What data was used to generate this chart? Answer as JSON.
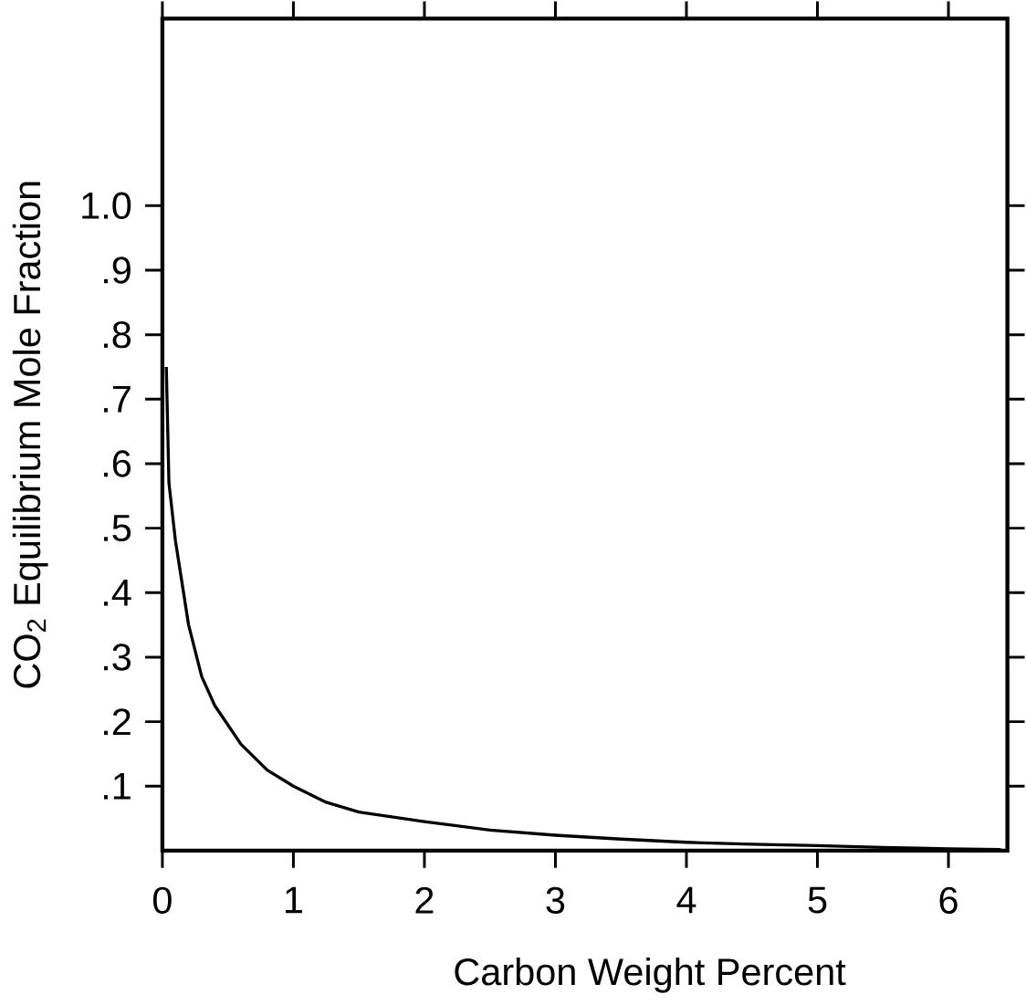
{
  "chart_data": {
    "type": "line",
    "xlabel": "Carbon Weight Percent",
    "ylabel": "CO$_{2}$ Equilibrium Mole Fraction",
    "x": [
      0.03,
      0.05,
      0.1,
      0.2,
      0.3,
      0.4,
      0.6,
      0.8,
      1,
      1.25,
      1.5,
      2,
      2.5,
      3,
      3.5,
      4,
      4.5,
      5,
      5.5,
      6,
      6.4
    ],
    "series": [
      {
        "color": "#000000",
        "values": [
          0.75,
          0.57,
          0.48,
          0.35,
          0.27,
          0.225,
          0.165,
          0.125,
          0.1,
          0.075,
          0.06,
          0.045,
          0.032,
          0.024,
          0.018,
          0.013,
          0.01,
          0.008,
          0.005,
          0.003,
          0.002
        ]
      }
    ],
    "xlim": [
      0,
      6.45
    ],
    "ylim": [
      0,
      1.29
    ],
    "xticks": [
      0,
      1,
      2,
      3,
      4,
      5,
      6
    ],
    "yticks": [
      {
        "value": 0.1,
        "label": ".1"
      },
      {
        "value": 0.2,
        "label": ".2"
      },
      {
        "value": 0.3,
        "label": ".3"
      },
      {
        "value": 0.4,
        "label": ".4"
      },
      {
        "value": 0.5,
        "label": ".5"
      },
      {
        "value": 0.6,
        "label": ".6"
      },
      {
        "value": 0.7,
        "label": ".7"
      },
      {
        "value": 0.8,
        "label": ".8"
      },
      {
        "value": 0.9,
        "label": ".9"
      },
      {
        "value": 1.0,
        "label": "1.0"
      }
    ],
    "grid": false,
    "marker": "none",
    "line_style": "solid"
  }
}
